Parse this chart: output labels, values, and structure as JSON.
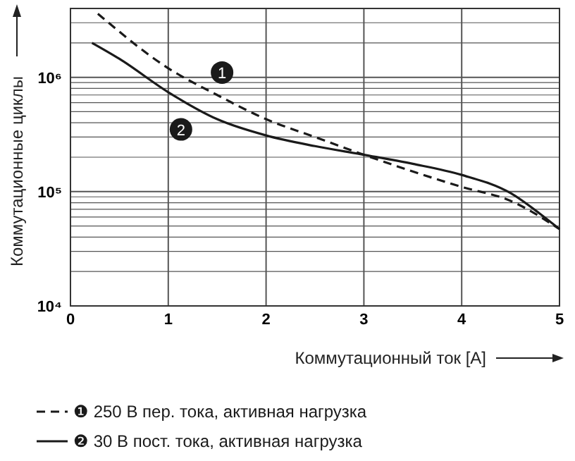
{
  "chart_data": {
    "type": "line",
    "xlabel": "Коммутационный ток [A]",
    "ylabel": "Коммутационные циклы",
    "log": "y",
    "grid": true,
    "legend": "bottom",
    "xlim": [
      0,
      5
    ],
    "xticks": [
      0,
      1,
      2,
      3,
      4,
      5
    ],
    "ylim": [
      10000,
      4000000
    ],
    "yticks": [
      {
        "value": 10000,
        "label": "10⁴"
      },
      {
        "value": 20000,
        "label": null
      },
      {
        "value": 30000,
        "label": null
      },
      {
        "value": 40000,
        "label": null
      },
      {
        "value": 50000,
        "label": null
      },
      {
        "value": 60000,
        "label": null
      },
      {
        "value": 70000,
        "label": null
      },
      {
        "value": 80000,
        "label": null
      },
      {
        "value": 90000,
        "label": null
      },
      {
        "value": 100000,
        "label": "10⁵"
      },
      {
        "value": 200000,
        "label": null
      },
      {
        "value": 300000,
        "label": null
      },
      {
        "value": 400000,
        "label": null
      },
      {
        "value": 500000,
        "label": null
      },
      {
        "value": 600000,
        "label": null
      },
      {
        "value": 700000,
        "label": null
      },
      {
        "value": 800000,
        "label": null
      },
      {
        "value": 900000,
        "label": null
      },
      {
        "value": 1000000,
        "label": "10⁶"
      },
      {
        "value": 2000000,
        "label": null
      },
      {
        "value": 3000000,
        "label": null
      }
    ],
    "series": [
      {
        "name": "❶ 250 В пер. тока, активная нагрузка",
        "color": "#1a1a1a",
        "line_style": "dashed",
        "x": [
          0.28,
          1,
          1.5,
          2,
          2.5,
          3,
          3.5,
          4,
          4.5,
          5
        ],
        "values": [
          3600000,
          1200000,
          700000,
          430000,
          300000,
          210000,
          150000,
          110000,
          83000,
          47000
        ]
      },
      {
        "name": "❷ 30 В пост. тока, активная нагрузка",
        "color": "#1a1a1a",
        "line_style": "solid",
        "x": [
          0.22,
          0.5,
          1,
          1.5,
          2,
          2.5,
          3,
          3.5,
          4,
          4.5,
          4.8,
          5
        ],
        "values": [
          2000000,
          1450000,
          740000,
          430000,
          310000,
          250000,
          210000,
          175000,
          140000,
          97000,
          64000,
          47000
        ]
      }
    ],
    "annotations": [
      {
        "text": "1",
        "x": 1.55,
        "y": 1100000
      },
      {
        "text": "2",
        "x": 1.13,
        "y": 350000
      }
    ]
  }
}
